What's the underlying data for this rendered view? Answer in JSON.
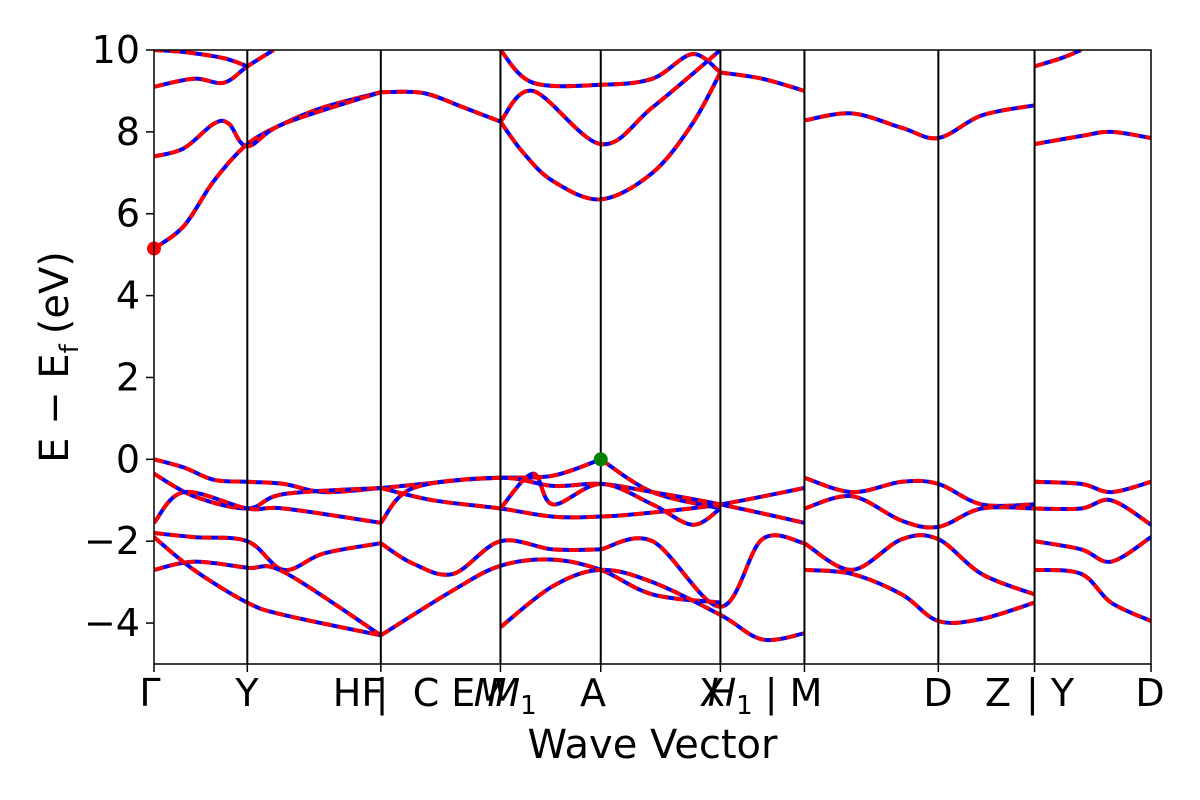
{
  "chart_data": {
    "type": "line",
    "title": "",
    "xlabel": "Wave Vector",
    "ylabel": "E − E",
    "ylabel_sub": "f",
    "ylabel_unit": "(eV)",
    "ylim": [
      -5,
      10
    ],
    "yticks": [
      -4,
      -2,
      0,
      2,
      4,
      6,
      8,
      10
    ],
    "ytick_labels": [
      "−4",
      "−2",
      "0",
      "2",
      "4",
      "6",
      "8",
      "10"
    ],
    "xlim": [
      0,
      1
    ],
    "kpath_labels": [
      {
        "label": "Γ",
        "x": 0.0
      },
      {
        "label": "Y",
        "x": 0.0936
      },
      {
        "label": "HF",
        "x": 0.2275
      },
      {
        "label": "|",
        "x": 0.2275
      },
      {
        "label": "C E",
        "x": 0.2893
      },
      {
        "label": "M",
        "x": 0.3475
      },
      {
        "label": "M",
        "x": 0.36
      },
      {
        "label": "A",
        "x": 0.4481
      },
      {
        "label": "X",
        "x": 0.5681
      },
      {
        "label": "H",
        "x": 0.6236
      },
      {
        "label": "| M",
        "x": 0.6932
      },
      {
        "label": "D",
        "x": 0.7867
      },
      {
        "label": "Z",
        "x": 0.8466
      },
      {
        "label": "| Y",
        "x": 0.8846
      },
      {
        "label": "D",
        "x": 1.0
      }
    ],
    "vlines": [
      0.0936,
      0.2275,
      0.3475,
      0.4481,
      0.5681,
      0.6524,
      0.7867,
      0.8832
    ],
    "grid": false,
    "legend": "none",
    "colors": {
      "series_a": "#ff0000",
      "series_b": "#0000ff",
      "vbm_marker": "#008000",
      "cbm_marker": "#ff0000",
      "axis": "#000000"
    },
    "markers": [
      {
        "name": "cbm",
        "x": 0.0,
        "y": 5.15,
        "color": "#ff0000"
      },
      {
        "name": "vbm",
        "x": 0.4481,
        "y": 0.0,
        "color": "#008000"
      }
    ],
    "bands": [
      {
        "x": [
          0,
          0.03,
          0.06,
          0.0936,
          0.13,
          0.17,
          0.2275
        ],
        "y": [
          5.15,
          5.7,
          6.8,
          7.7,
          8.2,
          8.6,
          8.97
        ]
      },
      {
        "x": [
          0.2275,
          0.27,
          0.31,
          0.3475
        ],
        "y": [
          8.97,
          8.95,
          8.6,
          8.25
        ]
      },
      {
        "x": [
          0,
          0.03,
          0.06,
          0.075,
          0.0936,
          0.13,
          0.2275
        ],
        "y": [
          7.4,
          7.6,
          8.2,
          8.2,
          7.65,
          8.2,
          8.97
        ]
      },
      {
        "x": [
          0.3475,
          0.37,
          0.4,
          0.4481,
          0.5,
          0.54,
          0.5681
        ],
        "y": [
          8.25,
          7.5,
          6.8,
          6.35,
          7.0,
          8.2,
          9.45
        ]
      },
      {
        "x": [
          0.3475,
          0.38,
          0.4481,
          0.5,
          0.54,
          0.5681
        ],
        "y": [
          10.0,
          9.2,
          9.15,
          9.3,
          9.9,
          9.45
        ]
      },
      {
        "x": [
          0.3475,
          0.38,
          0.4481,
          0.5,
          0.5681
        ],
        "y": [
          8.25,
          9.0,
          7.7,
          8.6,
          10.0
        ]
      },
      {
        "x": [
          0.5681,
          0.61,
          0.6524
        ],
        "y": [
          9.45,
          9.3,
          9.0
        ]
      },
      {
        "x": [
          0.6524,
          0.7,
          0.75,
          0.7867,
          0.83,
          0.8832
        ],
        "y": [
          8.28,
          8.45,
          8.1,
          7.85,
          8.4,
          8.65
        ]
      },
      {
        "x": [
          0.8832,
          0.93,
          0.96,
          1.0
        ],
        "y": [
          7.7,
          7.9,
          8.0,
          7.85
        ]
      },
      {
        "x": [
          0,
          0.04,
          0.07,
          0.0936,
          0.12
        ],
        "y": [
          9.1,
          9.3,
          9.2,
          9.6,
          10.0
        ]
      },
      {
        "x": [
          0,
          0.03,
          0.07,
          0.0936
        ],
        "y": [
          10.0,
          9.95,
          9.8,
          9.6
        ]
      },
      {
        "x": [
          0.8832,
          0.91,
          0.93
        ],
        "y": [
          9.6,
          9.8,
          10.0
        ]
      },
      {
        "x": [
          0,
          0.03,
          0.06,
          0.0936,
          0.13,
          0.17,
          0.2275,
          0.27,
          0.31,
          0.3475,
          0.4,
          0.4481
        ],
        "y": [
          0.0,
          -0.2,
          -0.5,
          -0.55,
          -0.6,
          -0.8,
          -0.7,
          -0.6,
          -0.5,
          -0.45,
          -0.4,
          0.0
        ]
      },
      {
        "x": [
          0.4481,
          0.5,
          0.5681
        ],
        "y": [
          0.0,
          -0.8,
          -1.2
        ]
      },
      {
        "x": [
          0,
          0.04,
          0.0936,
          0.13,
          0.2275
        ],
        "y": [
          -0.35,
          -0.9,
          -1.2,
          -0.85,
          -0.7
        ]
      },
      {
        "x": [
          0.2275,
          0.28,
          0.3475,
          0.4,
          0.4481,
          0.5,
          0.5681,
          0.6524
        ],
        "y": [
          -0.7,
          -1.0,
          -1.2,
          -1.4,
          -1.4,
          -1.3,
          -1.1,
          -0.7
        ]
      },
      {
        "x": [
          0.2275,
          0.26,
          0.3475,
          0.4,
          0.4481,
          0.5,
          0.5681,
          0.6524
        ],
        "y": [
          -1.55,
          -0.7,
          -0.45,
          -0.65,
          -0.6,
          -0.8,
          -1.1,
          -1.55
        ]
      },
      {
        "x": [
          0,
          0.03,
          0.0936,
          0.13,
          0.2275
        ],
        "y": [
          -1.55,
          -0.8,
          -1.2,
          -1.2,
          -1.55
        ]
      },
      {
        "x": [
          0.3475,
          0.38,
          0.4,
          0.4481,
          0.5,
          0.54,
          0.5681
        ],
        "y": [
          -1.2,
          -0.35,
          -1.1,
          -0.6,
          -1.1,
          -1.6,
          -1.2
        ]
      },
      {
        "x": [
          0.6524,
          0.7,
          0.75,
          0.7867,
          0.83,
          0.8832
        ],
        "y": [
          -0.45,
          -0.8,
          -0.55,
          -0.6,
          -1.1,
          -1.1
        ]
      },
      {
        "x": [
          0.6524,
          0.7,
          0.75,
          0.7867,
          0.83,
          0.8832
        ],
        "y": [
          -1.2,
          -0.9,
          -1.5,
          -1.65,
          -1.2,
          -1.2
        ]
      },
      {
        "x": [
          0.8832,
          0.93,
          0.96,
          1.0
        ],
        "y": [
          -0.55,
          -0.6,
          -0.8,
          -0.55
        ]
      },
      {
        "x": [
          0.8832,
          0.93,
          0.96,
          1.0
        ],
        "y": [
          -1.2,
          -1.2,
          -1.0,
          -1.6
        ]
      },
      {
        "x": [
          0,
          0.04,
          0.0936,
          0.13,
          0.17,
          0.2275
        ],
        "y": [
          -1.8,
          -1.9,
          -2.0,
          -2.7,
          -2.3,
          -2.05
        ]
      },
      {
        "x": [
          0.2275,
          0.26,
          0.3,
          0.3475,
          0.4,
          0.4481
        ],
        "y": [
          -2.05,
          -2.55,
          -2.8,
          -2.0,
          -2.2,
          -2.2
        ]
      },
      {
        "x": [
          0.4481,
          0.5,
          0.5681,
          0.61,
          0.6524
        ],
        "y": [
          -2.2,
          -2.0,
          -3.6,
          -1.95,
          -2.05
        ]
      },
      {
        "x": [
          0,
          0.04,
          0.0936,
          0.13,
          0.2275
        ],
        "y": [
          -2.7,
          -2.5,
          -2.65,
          -2.75,
          -4.3
        ]
      },
      {
        "x": [
          0.2275,
          0.3,
          0.3475,
          0.4,
          0.4481,
          0.5,
          0.5681
        ],
        "y": [
          -4.3,
          -3.2,
          -2.6,
          -2.45,
          -2.7,
          -3.3,
          -3.5
        ]
      },
      {
        "x": [
          0,
          0.04,
          0.0936,
          0.13,
          0.2275
        ],
        "y": [
          -1.9,
          -2.7,
          -3.5,
          -3.8,
          -4.3
        ]
      },
      {
        "x": [
          0.3475,
          0.4,
          0.4481,
          0.5,
          0.5681,
          0.61,
          0.6524
        ],
        "y": [
          -4.1,
          -3.1,
          -2.7,
          -3.0,
          -3.8,
          -4.4,
          -4.25
        ]
      },
      {
        "x": [
          0.6524,
          0.7,
          0.75,
          0.7867,
          0.83,
          0.8832
        ],
        "y": [
          -2.05,
          -2.7,
          -1.95,
          -1.95,
          -2.8,
          -3.3
        ]
      },
      {
        "x": [
          0.6524,
          0.7,
          0.75,
          0.7867,
          0.83,
          0.8832
        ],
        "y": [
          -2.7,
          -2.8,
          -3.3,
          -3.95,
          -3.9,
          -3.5
        ]
      },
      {
        "x": [
          0.8832,
          0.93,
          0.96,
          1.0
        ],
        "y": [
          -2.0,
          -2.2,
          -2.5,
          -1.9
        ]
      },
      {
        "x": [
          0.8832,
          0.93,
          0.96,
          1.0
        ],
        "y": [
          -2.7,
          -2.8,
          -3.5,
          -3.95
        ]
      }
    ]
  }
}
